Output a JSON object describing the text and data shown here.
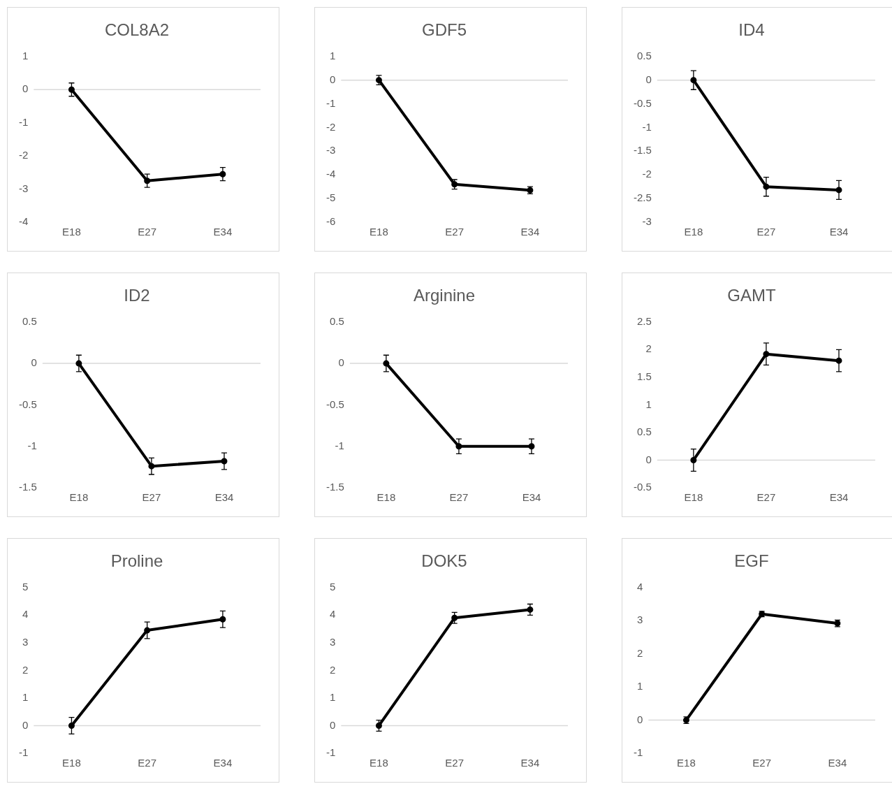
{
  "chart_data": [
    {
      "type": "line",
      "title": "COL8A2",
      "categories": [
        "E18",
        "E27",
        "E34"
      ],
      "values": [
        0,
        -2.75,
        -2.55
      ],
      "errors": [
        0.2,
        0.2,
        0.2
      ],
      "color": "#000000",
      "marker": "circle",
      "ylim": [
        -4,
        1
      ],
      "yticks": [
        -4,
        -3,
        -2,
        -1,
        0,
        1
      ],
      "grid": false,
      "ref_lines": [
        {
          "axis": "y",
          "value": 0,
          "color": "#d9d9d9"
        }
      ]
    },
    {
      "type": "line",
      "title": "GDF5",
      "categories": [
        "E18",
        "E27",
        "E34"
      ],
      "values": [
        0,
        -4.4,
        -4.65
      ],
      "errors": [
        0.2,
        0.2,
        0.15
      ],
      "color": "#000000",
      "marker": "circle",
      "ylim": [
        -6,
        1
      ],
      "yticks": [
        -6,
        -5,
        -4,
        -3,
        -2,
        -1,
        0,
        1
      ],
      "grid": false,
      "ref_lines": [
        {
          "axis": "y",
          "value": 0,
          "color": "#d9d9d9"
        }
      ]
    },
    {
      "type": "line",
      "title": "ID4",
      "categories": [
        "E18",
        "E27",
        "E34"
      ],
      "values": [
        0,
        -2.25,
        -2.32
      ],
      "errors": [
        0.2,
        0.2,
        0.2
      ],
      "color": "#000000",
      "marker": "circle",
      "ylim": [
        -3,
        0.5
      ],
      "yticks": [
        -3,
        -2.5,
        -2,
        -1.5,
        -1,
        -0.5,
        0,
        0.5
      ],
      "grid": false,
      "ref_lines": [
        {
          "axis": "y",
          "value": 0,
          "color": "#d9d9d9"
        }
      ]
    },
    {
      "type": "line",
      "title": "ID2",
      "categories": [
        "E18",
        "E27",
        "E34"
      ],
      "values": [
        0,
        -1.24,
        -1.18
      ],
      "errors": [
        0.1,
        0.1,
        0.1
      ],
      "color": "#000000",
      "marker": "circle",
      "ylim": [
        -1.5,
        0.5
      ],
      "yticks": [
        -1.5,
        -1,
        -0.5,
        0,
        0.5
      ],
      "grid": false,
      "ref_lines": [
        {
          "axis": "y",
          "value": 0,
          "color": "#d9d9d9"
        }
      ]
    },
    {
      "type": "line",
      "title": "Arginine",
      "categories": [
        "E18",
        "E27",
        "E34"
      ],
      "values": [
        0,
        -1,
        -1
      ],
      "errors": [
        0.1,
        0.09,
        0.09
      ],
      "color": "#000000",
      "marker": "circle",
      "ylim": [
        -1.5,
        0.5
      ],
      "yticks": [
        -1.5,
        -1,
        -0.5,
        0,
        0.5
      ],
      "grid": false,
      "ref_lines": [
        {
          "axis": "y",
          "value": 0,
          "color": "#d9d9d9"
        }
      ]
    },
    {
      "type": "line",
      "title": "GAMT",
      "categories": [
        "E18",
        "E27",
        "E34"
      ],
      "values": [
        0,
        1.92,
        1.8
      ],
      "errors": [
        0.2,
        0.2,
        0.2
      ],
      "color": "#000000",
      "marker": "circle",
      "ylim": [
        -0.5,
        2.5
      ],
      "yticks": [
        -0.5,
        0,
        0.5,
        1,
        1.5,
        2,
        2.5
      ],
      "grid": false,
      "ref_lines": [
        {
          "axis": "y",
          "value": 0,
          "color": "#d9d9d9"
        }
      ]
    },
    {
      "type": "line",
      "title": "Proline",
      "categories": [
        "E18",
        "E27",
        "E34"
      ],
      "values": [
        0,
        3.45,
        3.85
      ],
      "errors": [
        0.3,
        0.3,
        0.3
      ],
      "color": "#000000",
      "marker": "circle",
      "ylim": [
        -1,
        5
      ],
      "yticks": [
        -1,
        0,
        1,
        2,
        3,
        4,
        5
      ],
      "grid": false,
      "ref_lines": [
        {
          "axis": "y",
          "value": 0,
          "color": "#d9d9d9"
        }
      ]
    },
    {
      "type": "line",
      "title": "DOK5",
      "categories": [
        "E18",
        "E27",
        "E34"
      ],
      "values": [
        0,
        3.9,
        4.2
      ],
      "errors": [
        0.2,
        0.2,
        0.2
      ],
      "color": "#000000",
      "marker": "circle",
      "ylim": [
        -1,
        5
      ],
      "yticks": [
        -1,
        0,
        1,
        2,
        3,
        4,
        5
      ],
      "grid": false,
      "ref_lines": [
        {
          "axis": "y",
          "value": 0,
          "color": "#d9d9d9"
        }
      ]
    },
    {
      "type": "line",
      "title": "EGF",
      "categories": [
        "E18",
        "E27",
        "E34"
      ],
      "values": [
        0,
        3.2,
        2.92
      ],
      "errors": [
        0.1,
        0.08,
        0.1
      ],
      "color": "#000000",
      "marker": "circle",
      "ylim": [
        -1,
        4
      ],
      "yticks": [
        -1,
        0,
        1,
        2,
        3,
        4
      ],
      "grid": false,
      "ref_lines": [
        {
          "axis": "y",
          "value": 0,
          "color": "#d9d9d9"
        }
      ]
    }
  ]
}
